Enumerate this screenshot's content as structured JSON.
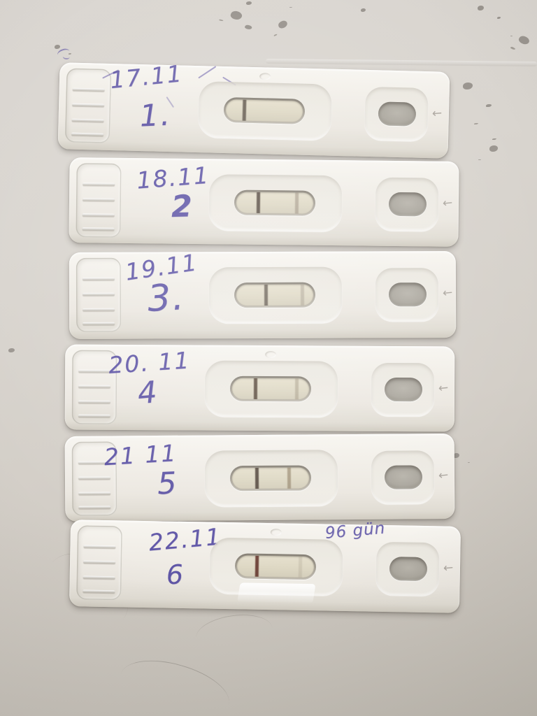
{
  "photo": {
    "surface_color": "#d3cec7",
    "cassette_color": "#f0ede7",
    "ink_color": "#4c429e",
    "result_window_strip_color": "#ded8c4"
  },
  "icons": {
    "well_arrow": "←"
  },
  "cassettes": [
    {
      "date": "17.11",
      "number": "1.",
      "note": "",
      "result_lines": [
        {
          "position": 22,
          "opacity": 0.85,
          "color": "#5a5046"
        }
      ]
    },
    {
      "date": "18.11",
      "number": "2",
      "note": "",
      "result_lines": [
        {
          "position": 26,
          "opacity": 0.92,
          "color": "#53473d"
        },
        {
          "position": 76,
          "opacity": 0.5,
          "color": "#8d8070"
        }
      ]
    },
    {
      "date": "19.11",
      "number": "3.",
      "note": "",
      "result_lines": [
        {
          "position": 36,
          "opacity": 0.82,
          "color": "#5a5046"
        },
        {
          "position": 84,
          "opacity": 0.4,
          "color": "#948a7a"
        }
      ]
    },
    {
      "date": "20. 11",
      "number": "4",
      "note": "",
      "result_lines": [
        {
          "position": 28,
          "opacity": 0.9,
          "color": "#554538"
        },
        {
          "position": 82,
          "opacity": 0.4,
          "color": "#91856f"
        }
      ]
    },
    {
      "date": "21 11",
      "number": "5",
      "note": "",
      "result_lines": [
        {
          "position": 30,
          "opacity": 0.9,
          "color": "#50443a"
        },
        {
          "position": 72,
          "opacity": 0.55,
          "color": "#837257"
        }
      ]
    },
    {
      "date": "22.11",
      "number": "6",
      "note": "96 gün",
      "result_lines": [
        {
          "position": 24,
          "opacity": 0.95,
          "color": "#6b3f35"
        },
        {
          "position": 80,
          "opacity": 0.2,
          "color": "#948a7a"
        }
      ]
    }
  ]
}
